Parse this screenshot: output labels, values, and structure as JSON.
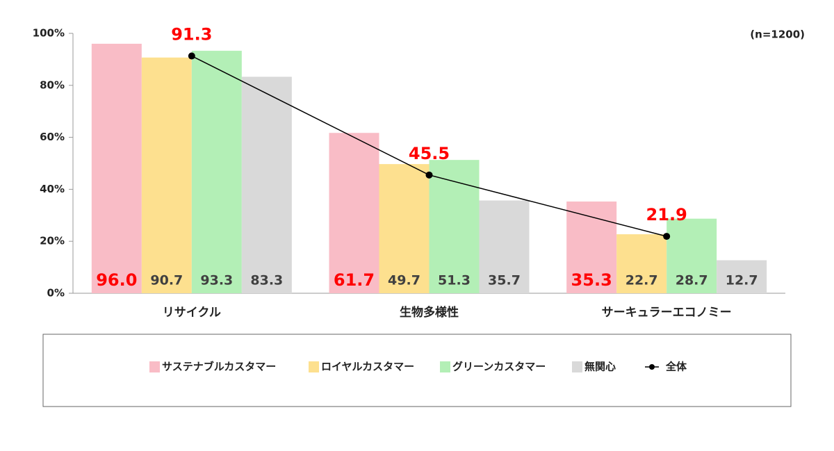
{
  "chart_data": {
    "type": "bar",
    "note": "(n=1200)",
    "categories": [
      "リサイクル",
      "生物多様性",
      "サーキュラーエコノミー"
    ],
    "series": [
      {
        "name": "サステナブルカスタマー",
        "color": "#f9bcc6",
        "values": [
          96.0,
          61.7,
          35.3
        ],
        "value_labels": [
          "96.0",
          "61.7",
          "35.3"
        ],
        "label_color": "#ff0000"
      },
      {
        "name": "ロイヤルカスタマー",
        "color": "#fde08f",
        "values": [
          90.7,
          49.7,
          22.7
        ],
        "label_color": "#404040"
      },
      {
        "name": "グリーンカスタマー",
        "color": "#b3efb6",
        "values": [
          93.3,
          51.3,
          28.7
        ],
        "label_color": "#404040"
      },
      {
        "name": "無関心",
        "color": "#d9d9d9",
        "values": [
          83.3,
          35.7,
          12.7
        ],
        "label_color": "#404040"
      },
      {
        "name": "全体",
        "type": "line",
        "color": "#000000",
        "values": [
          91.3,
          45.5,
          21.9
        ],
        "label_color": "#ff0000"
      }
    ],
    "ylim": [
      0,
      100
    ],
    "yticks": [
      {
        "value": 0,
        "label": "0%"
      },
      {
        "value": 20,
        "label": "20%"
      },
      {
        "value": 40,
        "label": "40%"
      },
      {
        "value": 60,
        "label": "60%"
      },
      {
        "value": 80,
        "label": "80%"
      },
      {
        "value": 100,
        "label": "100%"
      }
    ],
    "legend": "bottom"
  }
}
